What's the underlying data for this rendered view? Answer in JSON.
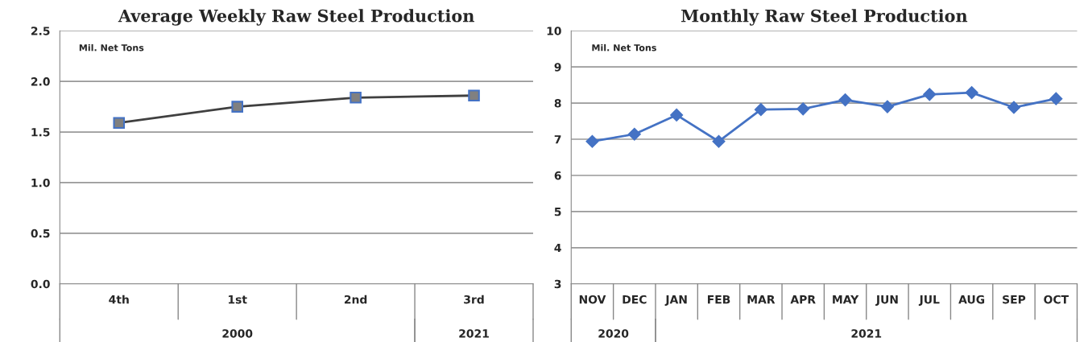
{
  "chart_data": [
    {
      "type": "line",
      "title": "Average Weekly Raw Steel Production",
      "categories": [
        "4th",
        "1st",
        "2nd",
        "3rd"
      ],
      "series": [
        {
          "color": "#404040",
          "values": [
            1.59,
            1.75,
            1.84,
            1.86
          ]
        }
      ],
      "marker": "square",
      "ylim": [
        0,
        2.5
      ],
      "yticks": [
        {
          "value": 0,
          "label": "0.0"
        },
        {
          "value": 0.5,
          "label": "0.5"
        },
        {
          "value": 1,
          "label": "1.0"
        },
        {
          "value": 1.5,
          "label": "1.5"
        },
        {
          "value": 2,
          "label": "2.0"
        },
        {
          "value": 2.5,
          "label": "2.5"
        }
      ],
      "grid": "y",
      "annotations": [
        "Mil. Net Tons",
        "2000",
        "2021"
      ]
    },
    {
      "type": "line",
      "title": "Monthly Raw Steel Production",
      "categories": [
        "NOV",
        "DEC",
        "JAN",
        "FEB",
        "MAR",
        "APR",
        "MAY",
        "JUN",
        "JUL",
        "AUG",
        "SEP",
        "OCT"
      ],
      "series": [
        {
          "color": "#4472c4",
          "values": [
            6.94,
            7.14,
            7.67,
            6.94,
            7.82,
            7.84,
            8.09,
            7.9,
            8.24,
            8.29,
            7.88,
            8.12
          ]
        }
      ],
      "marker": "diamond",
      "ylim": [
        3,
        10
      ],
      "yticks": [
        3,
        4,
        5,
        6,
        7,
        8,
        9,
        10
      ],
      "grid": "y",
      "annotations": [
        "Mil. Net Tons",
        "2020",
        "2021"
      ]
    }
  ]
}
